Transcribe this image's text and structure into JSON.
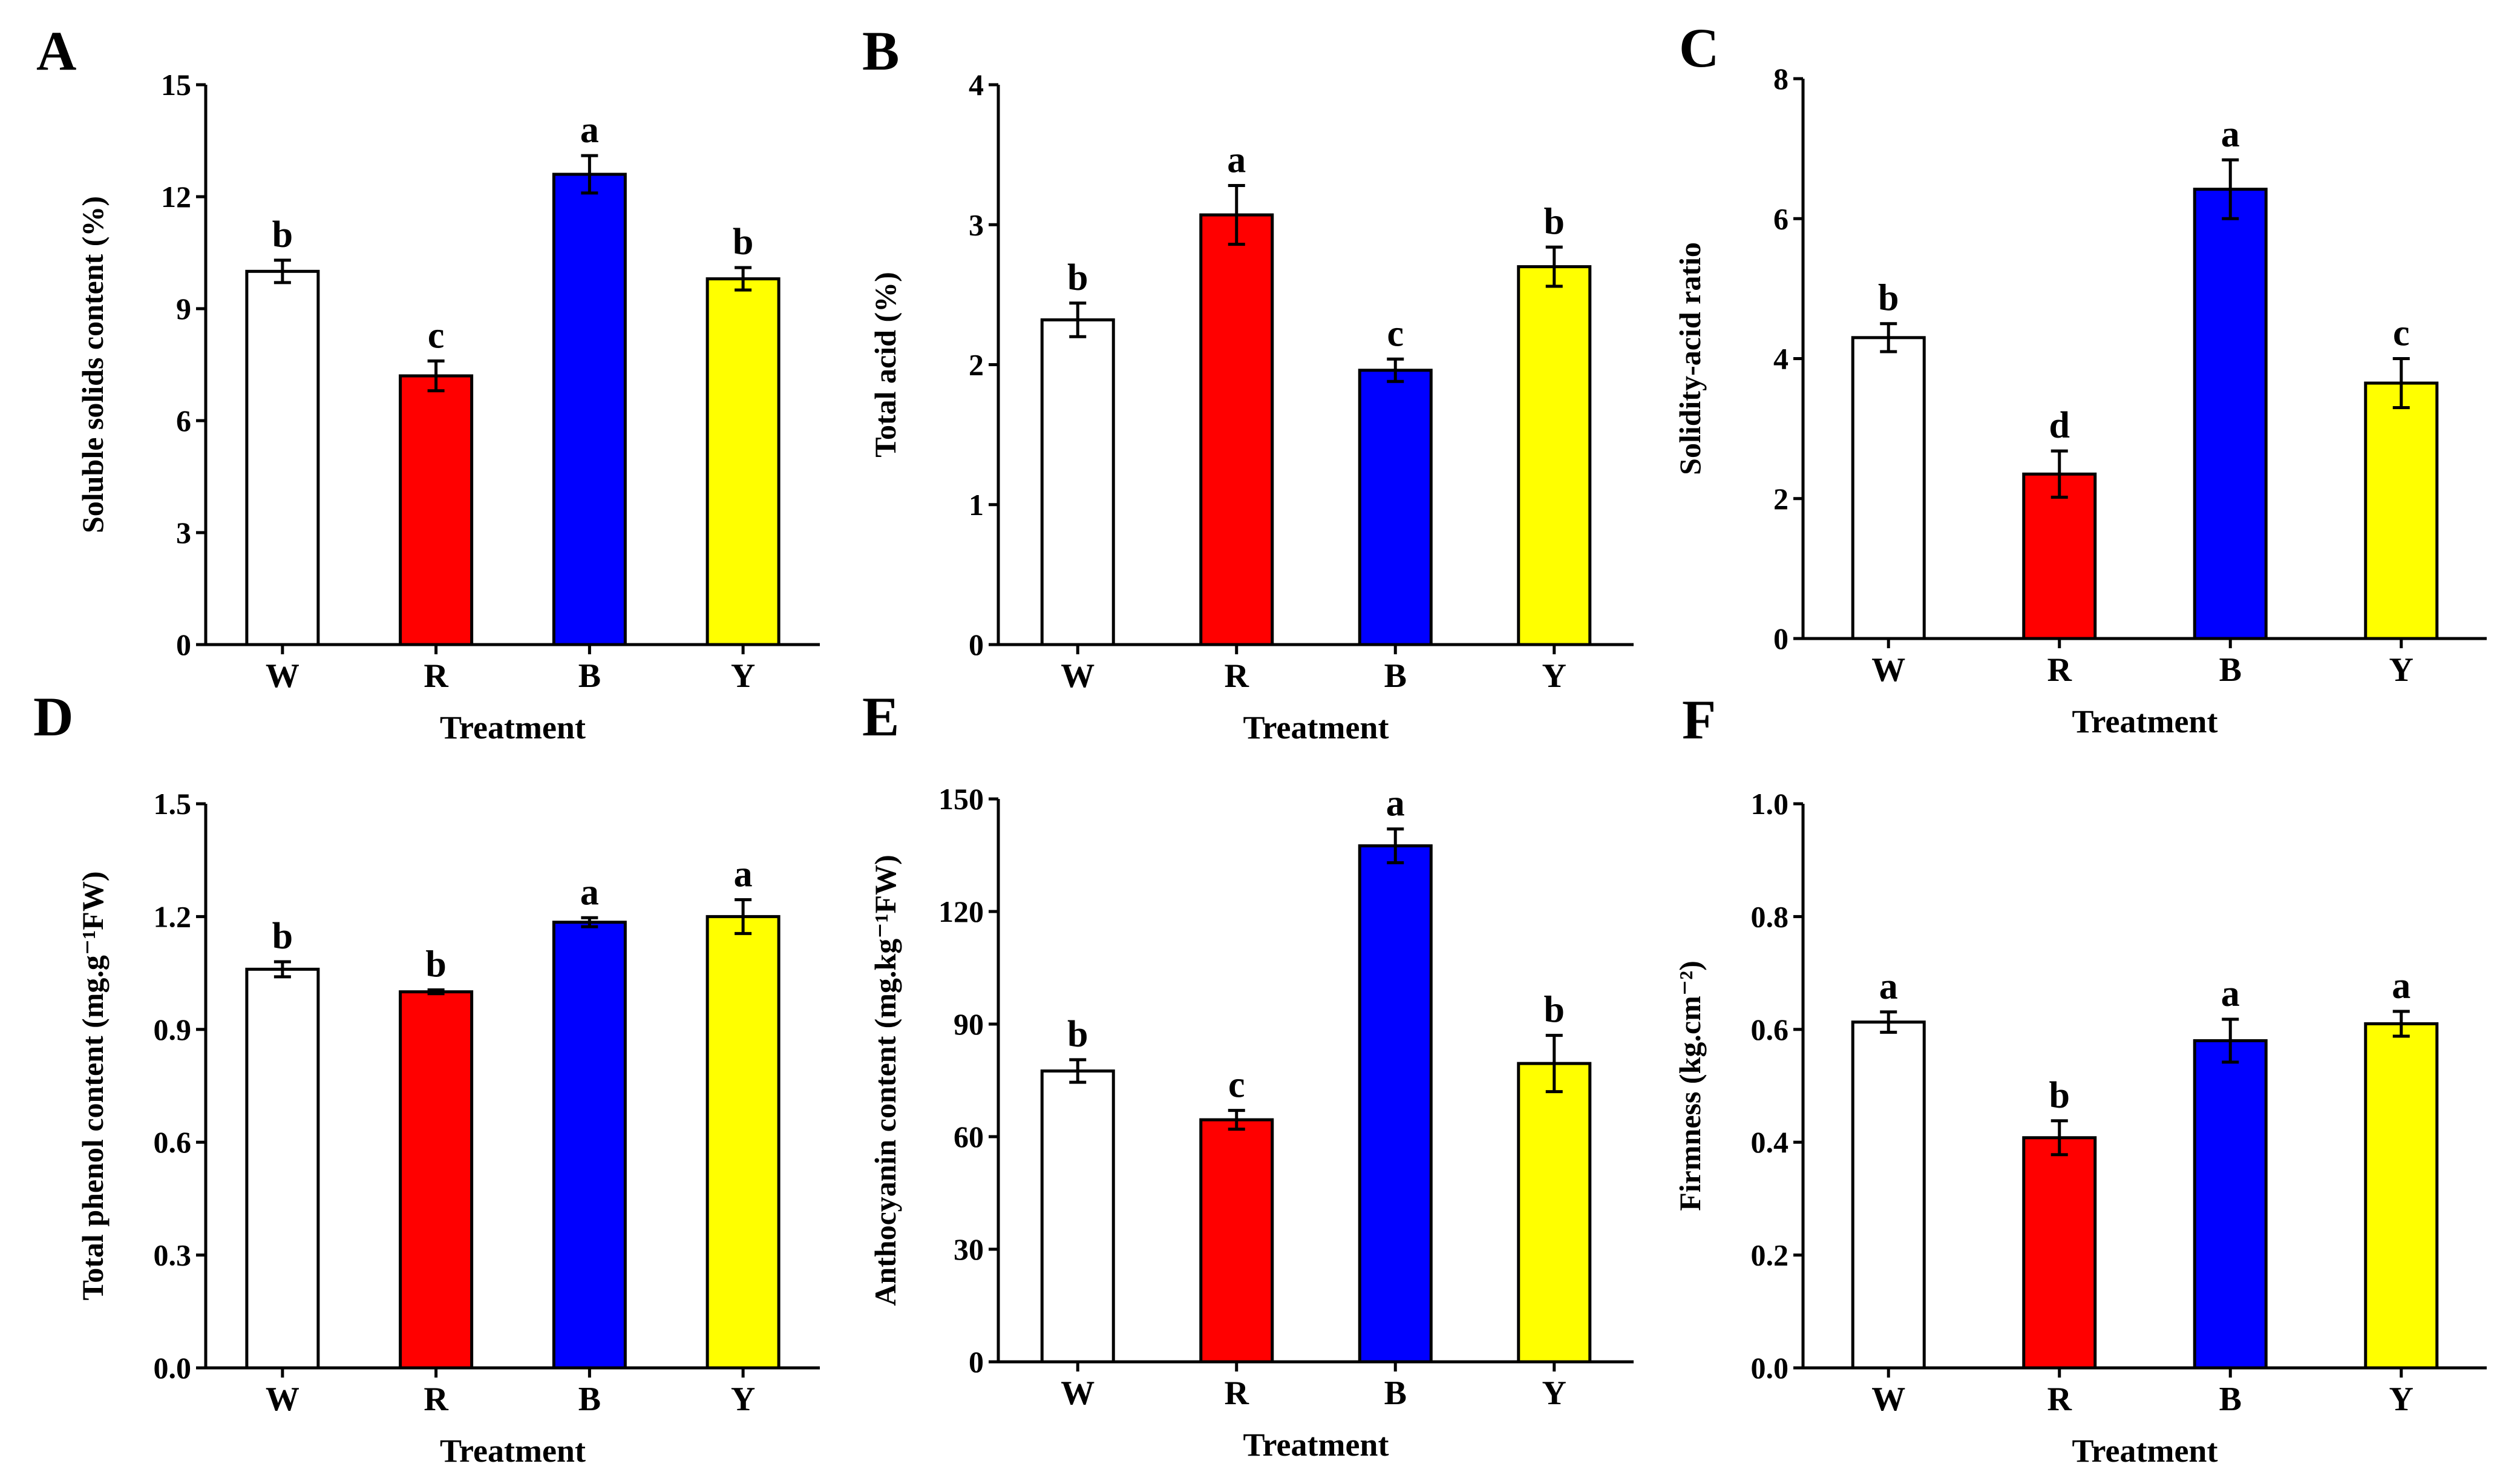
{
  "chart_data": [
    {
      "panel": "A",
      "type": "bar",
      "categories": [
        "W",
        "R",
        "B",
        "Y"
      ],
      "values": [
        10.0,
        7.2,
        12.6,
        9.8
      ],
      "errors": [
        0.3,
        0.4,
        0.5,
        0.3
      ],
      "significance": [
        "b",
        "c",
        "a",
        "b"
      ],
      "colors": [
        "#ffffff",
        "#ff0000",
        "#0000ff",
        "#ffff00"
      ],
      "ylabel": "Soluble solids content (%)",
      "xlabel": "Treatment",
      "ylim": [
        0,
        15
      ],
      "yticks": [
        0,
        3,
        6,
        9,
        12,
        15
      ],
      "ytick_labels": [
        "0",
        "3",
        "6",
        "9",
        "12",
        "15"
      ]
    },
    {
      "panel": "B",
      "type": "bar",
      "categories": [
        "W",
        "R",
        "B",
        "Y"
      ],
      "values": [
        2.32,
        3.07,
        1.96,
        2.7
      ],
      "errors": [
        0.12,
        0.21,
        0.08,
        0.14
      ],
      "significance": [
        "b",
        "a",
        "c",
        "b"
      ],
      "colors": [
        "#ffffff",
        "#ff0000",
        "#0000ff",
        "#ffff00"
      ],
      "ylabel": "Total acid (%)",
      "xlabel": "Treatment",
      "ylim": [
        0,
        4
      ],
      "yticks": [
        0,
        1,
        2,
        3,
        4
      ],
      "ytick_labels": [
        "0",
        "1",
        "2",
        "3",
        "4"
      ]
    },
    {
      "panel": "C",
      "type": "bar",
      "categories": [
        "W",
        "R",
        "B",
        "Y"
      ],
      "values": [
        4.3,
        2.35,
        6.42,
        3.65
      ],
      "errors": [
        0.2,
        0.33,
        0.42,
        0.35
      ],
      "significance": [
        "b",
        "d",
        "a",
        "c"
      ],
      "colors": [
        "#ffffff",
        "#ff0000",
        "#0000ff",
        "#ffff00"
      ],
      "ylabel": "Solidity-acid ratio",
      "xlabel": "Treatment",
      "ylim": [
        0,
        8
      ],
      "yticks": [
        0,
        2,
        4,
        6,
        8
      ],
      "ytick_labels": [
        "0",
        "2",
        "4",
        "6",
        "8"
      ]
    },
    {
      "panel": "D",
      "type": "bar",
      "categories": [
        "W",
        "R",
        "B",
        "Y"
      ],
      "values": [
        1.06,
        1.0,
        1.185,
        1.2
      ],
      "errors": [
        0.02,
        0.005,
        0.012,
        0.045
      ],
      "significance": [
        "b",
        "b",
        "a",
        "a"
      ],
      "colors": [
        "#ffffff",
        "#ff0000",
        "#0000ff",
        "#ffff00"
      ],
      "ylabel": "Total phenol content (mg.g⁻¹FW)",
      "xlabel": "Treatment",
      "ylim": [
        0,
        1.5
      ],
      "yticks": [
        0,
        0.3,
        0.6,
        0.9,
        1.2,
        1.5
      ],
      "ytick_labels": [
        "0.0",
        "0.3",
        "0.6",
        "0.9",
        "1.2",
        "1.5"
      ]
    },
    {
      "panel": "E",
      "type": "bar",
      "categories": [
        "W",
        "R",
        "B",
        "Y"
      ],
      "values": [
        77.5,
        64.5,
        137.5,
        79.5
      ],
      "errors": [
        3.0,
        2.5,
        4.5,
        7.5
      ],
      "significance": [
        "b",
        "c",
        "a",
        "b"
      ],
      "colors": [
        "#ffffff",
        "#ff0000",
        "#0000ff",
        "#ffff00"
      ],
      "ylabel": "Anthocyanin content (mg.kg⁻¹FW)",
      "xlabel": "Treatment",
      "ylim": [
        0,
        150
      ],
      "yticks": [
        0,
        30,
        60,
        90,
        120,
        150
      ],
      "ytick_labels": [
        "0",
        "30",
        "60",
        "90",
        "120",
        "150"
      ]
    },
    {
      "panel": "F",
      "type": "bar",
      "categories": [
        "W",
        "R",
        "B",
        "Y"
      ],
      "values": [
        0.613,
        0.408,
        0.58,
        0.61
      ],
      "errors": [
        0.018,
        0.03,
        0.038,
        0.022
      ],
      "significance": [
        "a",
        "b",
        "a",
        "a"
      ],
      "colors": [
        "#ffffff",
        "#ff0000",
        "#0000ff",
        "#ffff00"
      ],
      "ylabel": "Firmness (kg.cm⁻²)",
      "xlabel": "Treatment",
      "ylim": [
        0,
        1.0
      ],
      "yticks": [
        0,
        0.2,
        0.4,
        0.6,
        0.8,
        1.0
      ],
      "ytick_labels": [
        "0.0",
        "0.2",
        "0.4",
        "0.6",
        "0.8",
        "1.0"
      ]
    }
  ]
}
